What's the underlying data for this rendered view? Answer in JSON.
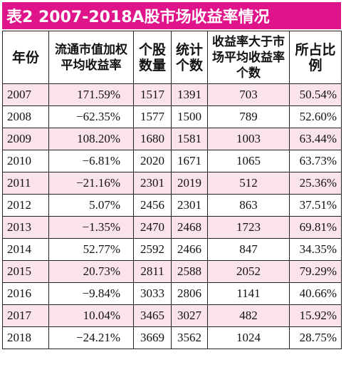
{
  "title": "表2  2007-2018A股市场收益率情况",
  "headers": [
    "年份",
    "流通市值加权平均收益率",
    "个股数量",
    "统计个数",
    "收益率大于市场平均收益率个数",
    "所占比例"
  ],
  "rows": [
    {
      "year": "2007",
      "return": "171.59%",
      "stocks": "1517",
      "counted": "1391",
      "above": "703",
      "ratio": "50.54%"
    },
    {
      "year": "2008",
      "return": "−62.35%",
      "stocks": "1577",
      "counted": "1500",
      "above": "789",
      "ratio": "52.60%"
    },
    {
      "year": "2009",
      "return": "108.20%",
      "stocks": "1680",
      "counted": "1581",
      "above": "1003",
      "ratio": "63.44%"
    },
    {
      "year": "2010",
      "return": "−6.81%",
      "stocks": "2020",
      "counted": "1671",
      "above": "1065",
      "ratio": "63.73%"
    },
    {
      "year": "2011",
      "return": "−21.16%",
      "stocks": "2301",
      "counted": "2019",
      "above": "512",
      "ratio": "25.36%"
    },
    {
      "year": "2012",
      "return": "5.07%",
      "stocks": "2456",
      "counted": "2301",
      "above": "863",
      "ratio": "37.51%"
    },
    {
      "year": "2013",
      "return": "−1.35%",
      "stocks": "2470",
      "counted": "2468",
      "above": "1723",
      "ratio": "69.81%"
    },
    {
      "year": "2014",
      "return": "52.77%",
      "stocks": "2592",
      "counted": "2466",
      "above": "847",
      "ratio": "34.35%"
    },
    {
      "year": "2015",
      "return": "20.73%",
      "stocks": "2811",
      "counted": "2588",
      "above": "2052",
      "ratio": "79.29%"
    },
    {
      "year": "2016",
      "return": "−9.84%",
      "stocks": "3033",
      "counted": "2806",
      "above": "1141",
      "ratio": "40.66%"
    },
    {
      "year": "2017",
      "return": "10.04%",
      "stocks": "3465",
      "counted": "3027",
      "above": "482",
      "ratio": "15.92%"
    },
    {
      "year": "2018",
      "return": "−24.21%",
      "stocks": "3669",
      "counted": "3562",
      "above": "1024",
      "ratio": "28.75%"
    }
  ],
  "colors": {
    "title_background": "#e0148a",
    "title_text": "#ffffff",
    "row_stripe": "#fbe3ec"
  }
}
